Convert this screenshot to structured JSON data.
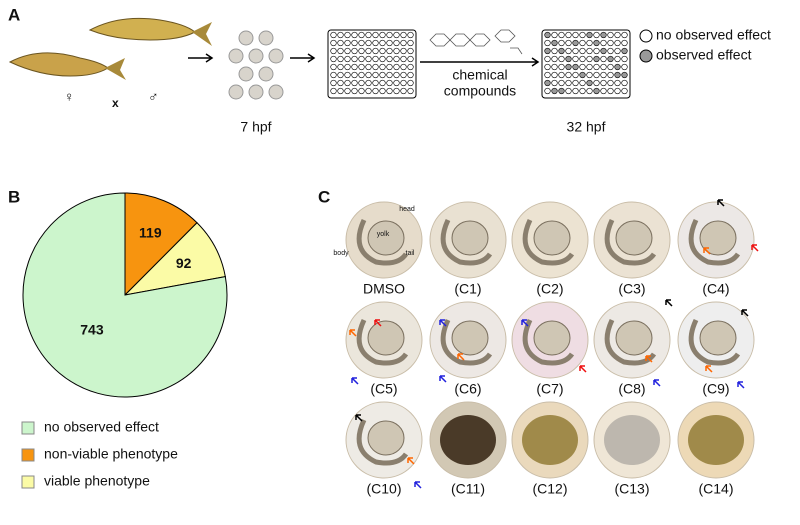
{
  "panel_labels": [
    "A",
    "B",
    "C"
  ],
  "panel_a": {
    "female": "♀",
    "cross": "x",
    "male": "♂",
    "stage1": "7 hpf",
    "compounds": [
      "chemical",
      "compounds"
    ],
    "stage2": "32 hpf",
    "legend": [
      "no observed effect",
      "observed effect"
    ]
  },
  "chart_data": {
    "type": "pie",
    "categories": [
      "no observed effect",
      "non-viable phenotype",
      "viable phenotype"
    ],
    "values": [
      743,
      119,
      92
    ],
    "colors": [
      "#ccf5cc",
      "#f7940f",
      "#fbfba6"
    ]
  },
  "panel_c": {
    "annotations": [
      "head",
      "yolk",
      "body",
      "tail"
    ],
    "labels": [
      "DMSO",
      "(C1)",
      "(C2)",
      "(C3)",
      "(C4)",
      "(C5)",
      "(C6)",
      "(C7)",
      "(C8)",
      "(C9)",
      "(C10)",
      "(C11)",
      "(C12)",
      "(C13)",
      "(C14)"
    ]
  }
}
